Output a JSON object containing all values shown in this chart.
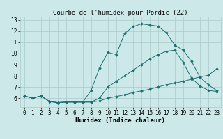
{
  "title": "Courbe de l'humidex pour Pordic (22)",
  "xlabel": "Humidex (Indice chaleur)",
  "xlim": [
    -0.5,
    23.5
  ],
  "ylim": [
    5.2,
    13.3
  ],
  "yticks": [
    6,
    7,
    8,
    9,
    10,
    11,
    12,
    13
  ],
  "xticks": [
    0,
    1,
    2,
    3,
    4,
    5,
    6,
    7,
    8,
    9,
    10,
    11,
    12,
    13,
    14,
    15,
    16,
    17,
    18,
    19,
    20,
    21,
    22,
    23
  ],
  "background_color": "#cce8e8",
  "grid_color": "#aacccc",
  "line_color": "#1a7070",
  "curve1_x": [
    0,
    1,
    2,
    3,
    4,
    5,
    6,
    7,
    8,
    9,
    10,
    11,
    12,
    13,
    14,
    15,
    16,
    17,
    18,
    19,
    20,
    21,
    22,
    23
  ],
  "curve1_y": [
    6.2,
    6.0,
    6.2,
    5.7,
    5.6,
    5.65,
    5.65,
    5.65,
    5.65,
    5.75,
    6.0,
    6.15,
    6.3,
    6.5,
    6.65,
    6.8,
    7.0,
    7.2,
    7.35,
    7.5,
    7.7,
    7.9,
    8.05,
    8.6
  ],
  "curve2_x": [
    0,
    1,
    2,
    3,
    4,
    5,
    6,
    7,
    8,
    9,
    10,
    11,
    12,
    13,
    14,
    15,
    16,
    17,
    18,
    19,
    20,
    21,
    22,
    23
  ],
  "curve2_y": [
    6.2,
    6.0,
    6.2,
    5.7,
    5.6,
    5.65,
    5.65,
    5.65,
    5.65,
    6.0,
    7.0,
    7.5,
    8.0,
    8.5,
    9.0,
    9.5,
    9.9,
    10.2,
    10.3,
    9.2,
    7.8,
    7.1,
    6.7,
    6.6
  ],
  "curve3_x": [
    0,
    1,
    2,
    3,
    4,
    5,
    6,
    7,
    8,
    9,
    10,
    11,
    12,
    13,
    14,
    15,
    16,
    17,
    18,
    19,
    20,
    21,
    22,
    23
  ],
  "curve3_y": [
    6.2,
    6.0,
    6.2,
    5.7,
    5.6,
    5.65,
    5.65,
    5.65,
    6.7,
    8.7,
    10.1,
    9.9,
    11.8,
    12.4,
    12.65,
    12.55,
    12.45,
    11.85,
    10.75,
    10.3,
    9.3,
    7.9,
    7.2,
    6.7
  ],
  "title_fontsize": 6.5,
  "axis_fontsize": 6.5,
  "tick_fontsize": 5.5
}
